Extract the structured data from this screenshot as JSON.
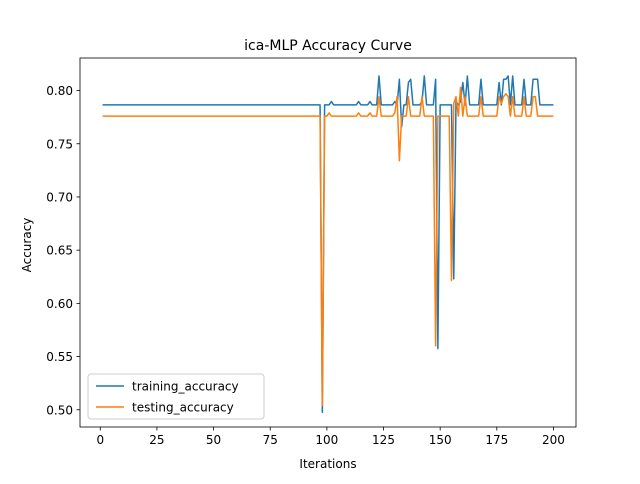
{
  "chart_data": {
    "type": "line",
    "title": "ica-MLP Accuracy Curve",
    "xlabel": "Iterations",
    "ylabel": "Accuracy",
    "xlim": [
      -8.95,
      209.95
    ],
    "ylim": [
      0.4838,
      0.8306
    ],
    "xticks": [
      0,
      25,
      50,
      75,
      100,
      125,
      150,
      175,
      200
    ],
    "yticks": [
      0.5,
      0.55,
      0.6,
      0.65,
      0.7,
      0.75,
      0.8
    ],
    "xtick_labels": [
      "0",
      "25",
      "50",
      "75",
      "100",
      "125",
      "150",
      "175",
      "200"
    ],
    "ytick_labels": [
      "0.50",
      "0.55",
      "0.60",
      "0.65",
      "0.70",
      "0.75",
      "0.80"
    ],
    "legend_position": "lower-left",
    "grid": false,
    "series": [
      {
        "name": "training_accuracy",
        "color": "#1f77b4",
        "points": [
          [
            1,
            0.7866
          ],
          [
            97,
            0.7866
          ],
          [
            98,
            0.4975
          ],
          [
            99,
            0.7866
          ],
          [
            101,
            0.7866
          ],
          [
            102,
            0.7897
          ],
          [
            103,
            0.7866
          ],
          [
            113,
            0.7866
          ],
          [
            114,
            0.7897
          ],
          [
            115,
            0.7866
          ],
          [
            118,
            0.7866
          ],
          [
            119,
            0.7897
          ],
          [
            120,
            0.7866
          ],
          [
            122,
            0.7866
          ],
          [
            123,
            0.8137
          ],
          [
            124,
            0.7866
          ],
          [
            129,
            0.7866
          ],
          [
            130,
            0.7897
          ],
          [
            131,
            0.7866
          ],
          [
            132,
            0.8106
          ],
          [
            133,
            0.766
          ],
          [
            134,
            0.7866
          ],
          [
            135,
            0.7866
          ],
          [
            136,
            0.8076
          ],
          [
            137,
            0.8106
          ],
          [
            138,
            0.7866
          ],
          [
            141,
            0.7866
          ],
          [
            142,
            0.7897
          ],
          [
            143,
            0.8137
          ],
          [
            144,
            0.7866
          ],
          [
            147,
            0.7866
          ],
          [
            148,
            0.8106
          ],
          [
            149,
            0.5575
          ],
          [
            150,
            0.7866
          ],
          [
            153,
            0.7866
          ],
          [
            154,
            0.7866
          ],
          [
            155,
            0.7866
          ],
          [
            156,
            0.623
          ],
          [
            157,
            0.7897
          ],
          [
            158,
            0.7866
          ],
          [
            159,
            0.7897
          ],
          [
            160,
            0.8076
          ],
          [
            161,
            0.7866
          ],
          [
            162,
            0.8137
          ],
          [
            163,
            0.7866
          ],
          [
            167,
            0.7866
          ],
          [
            168,
            0.8106
          ],
          [
            169,
            0.7866
          ],
          [
            175,
            0.7866
          ],
          [
            176,
            0.8076
          ],
          [
            177,
            0.7866
          ],
          [
            178,
            0.8106
          ],
          [
            179,
            0.8106
          ],
          [
            180,
            0.8137
          ],
          [
            181,
            0.7866
          ],
          [
            182,
            0.8137
          ],
          [
            183,
            0.7866
          ],
          [
            186,
            0.7866
          ],
          [
            187,
            0.8106
          ],
          [
            188,
            0.7866
          ],
          [
            190,
            0.7866
          ],
          [
            191,
            0.8106
          ],
          [
            192,
            0.8106
          ],
          [
            193,
            0.8106
          ],
          [
            194,
            0.7866
          ],
          [
            200,
            0.7866
          ]
        ]
      },
      {
        "name": "testing_accuracy",
        "color": "#ff7f0e",
        "points": [
          [
            1,
            0.776
          ],
          [
            97,
            0.776
          ],
          [
            98,
            0.504
          ],
          [
            99,
            0.776
          ],
          [
            100,
            0.776
          ],
          [
            101,
            0.779
          ],
          [
            102,
            0.776
          ],
          [
            113,
            0.776
          ],
          [
            114,
            0.779
          ],
          [
            115,
            0.776
          ],
          [
            118,
            0.776
          ],
          [
            119,
            0.779
          ],
          [
            120,
            0.776
          ],
          [
            122,
            0.776
          ],
          [
            123,
            0.7943
          ],
          [
            124,
            0.776
          ],
          [
            129,
            0.776
          ],
          [
            130,
            0.779
          ],
          [
            131,
            0.7943
          ],
          [
            132,
            0.734
          ],
          [
            133,
            0.776
          ],
          [
            135,
            0.776
          ],
          [
            136,
            0.7943
          ],
          [
            137,
            0.776
          ],
          [
            141,
            0.776
          ],
          [
            142,
            0.7943
          ],
          [
            143,
            0.776
          ],
          [
            147,
            0.776
          ],
          [
            148,
            0.56
          ],
          [
            149,
            0.776
          ],
          [
            153,
            0.776
          ],
          [
            154,
            0.776
          ],
          [
            155,
            0.6215
          ],
          [
            156,
            0.788
          ],
          [
            157,
            0.7943
          ],
          [
            158,
            0.776
          ],
          [
            159,
            0.803
          ],
          [
            160,
            0.776
          ],
          [
            161,
            0.7943
          ],
          [
            162,
            0.776
          ],
          [
            167,
            0.776
          ],
          [
            168,
            0.7943
          ],
          [
            169,
            0.776
          ],
          [
            175,
            0.776
          ],
          [
            176,
            0.7943
          ],
          [
            177,
            0.788
          ],
          [
            178,
            0.7943
          ],
          [
            179,
            0.797
          ],
          [
            180,
            0.7943
          ],
          [
            181,
            0.776
          ],
          [
            182,
            0.7943
          ],
          [
            183,
            0.776
          ],
          [
            186,
            0.776
          ],
          [
            187,
            0.7943
          ],
          [
            188,
            0.776
          ],
          [
            190,
            0.776
          ],
          [
            191,
            0.7943
          ],
          [
            192,
            0.7943
          ],
          [
            193,
            0.776
          ],
          [
            200,
            0.776
          ]
        ]
      }
    ]
  }
}
